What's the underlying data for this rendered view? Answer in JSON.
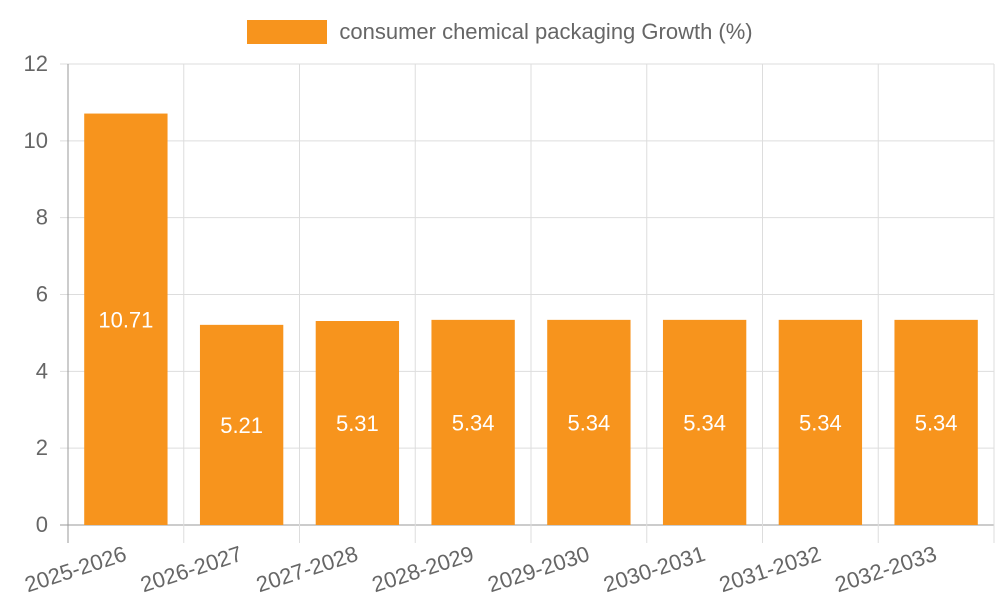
{
  "chart_data": {
    "type": "bar",
    "categories": [
      "2025-2026",
      "2026-2027",
      "2027-2028",
      "2028-2029",
      "2029-2030",
      "2030-2031",
      "2031-2032",
      "2032-2033"
    ],
    "series": [
      {
        "name": "consumer chemical packaging Growth (%)",
        "values": [
          10.71,
          5.21,
          5.31,
          5.34,
          5.34,
          5.34,
          5.34,
          5.34
        ],
        "data_labels": [
          "10.71",
          "5.21",
          "5.31",
          "5.34",
          "5.34",
          "5.34",
          "5.34",
          "5.34"
        ]
      }
    ],
    "y_ticks": [
      "0",
      "2",
      "4",
      "6",
      "8",
      "10",
      "12"
    ],
    "ylim": [
      0,
      12
    ],
    "grid": true,
    "legend_position": "top-center",
    "colors": {
      "bar": "#f7941d",
      "grid": "#dddddd",
      "axis": "#999999",
      "tick_text": "#666666",
      "data_label": "#ffffff"
    }
  }
}
